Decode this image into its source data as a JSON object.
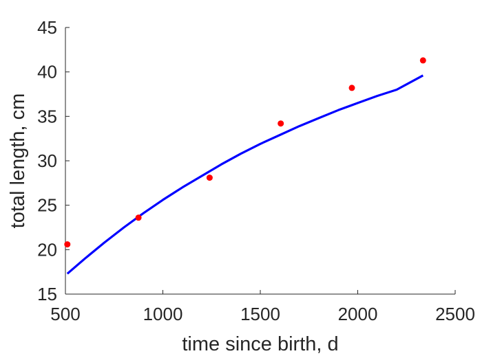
{
  "chart_data": {
    "type": "scatter",
    "title": "",
    "xlabel": "time since birth, d",
    "ylabel": "total length, cm",
    "xlim": [
      500,
      2500
    ],
    "ylim": [
      15,
      45
    ],
    "xticks": [
      500,
      1000,
      1500,
      2000,
      2500
    ],
    "yticks": [
      15,
      20,
      25,
      30,
      35,
      40,
      45
    ],
    "xtick_labels": [
      "500",
      "1000",
      "1500",
      "2000",
      "2500"
    ],
    "ytick_labels": [
      "15",
      "20",
      "25",
      "30",
      "35",
      "40",
      "45"
    ],
    "grid": false,
    "legend": "none",
    "series": [
      {
        "type": "scatter",
        "color": "#ff0000",
        "x": [
          510,
          875,
          1240,
          1605,
          1970,
          2335
        ],
        "y": [
          20.6,
          23.6,
          28.1,
          34.2,
          38.2,
          41.3
        ]
      },
      {
        "type": "line",
        "color": "#0000ff",
        "x": [
          510,
          600,
          700,
          800,
          900,
          1000,
          1100,
          1200,
          1300,
          1400,
          1500,
          1600,
          1700,
          1800,
          1900,
          2000,
          2100,
          2200,
          2335
        ],
        "y": [
          17.3,
          19.0,
          20.8,
          22.5,
          24.1,
          25.6,
          27.0,
          28.3,
          29.6,
          30.8,
          31.9,
          32.9,
          33.9,
          34.8,
          35.7,
          36.5,
          37.3,
          38.0,
          39.6
        ]
      }
    ]
  }
}
